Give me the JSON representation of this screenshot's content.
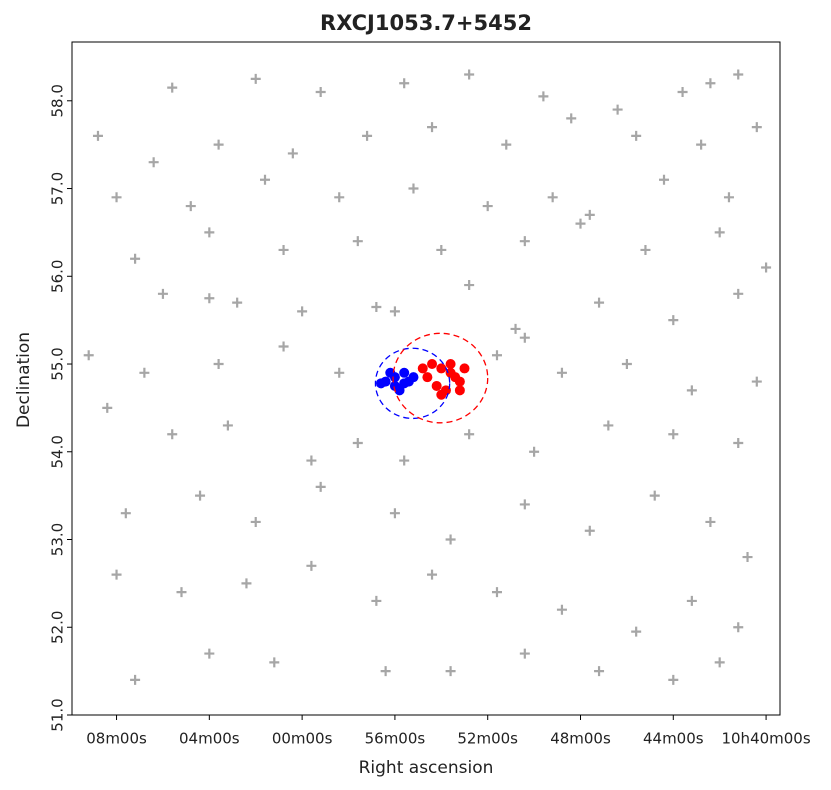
{
  "chart_data": {
    "type": "scatter",
    "title": "RXCJ1053.7+5452",
    "x_label": "Right ascension",
    "y_label": "Declination",
    "xlim": [
      167.48,
      159.85
    ],
    "ylim": [
      51.0,
      58.67
    ],
    "xticks": [
      {
        "value": 167,
        "label": "08m00s"
      },
      {
        "value": 166,
        "label": "04m00s"
      },
      {
        "value": 165,
        "label": "00m00s"
      },
      {
        "value": 164,
        "label": "56m00s"
      },
      {
        "value": 163,
        "label": "52m00s"
      },
      {
        "value": 162,
        "label": "48m00s"
      },
      {
        "value": 161,
        "label": "44m00s"
      },
      {
        "value": 160,
        "label": "10h40m00s"
      }
    ],
    "yticks": [
      {
        "value": 51,
        "label": "51.0"
      },
      {
        "value": 52,
        "label": "52.0"
      },
      {
        "value": 53,
        "label": "53.0"
      },
      {
        "value": 54,
        "label": "54.0"
      },
      {
        "value": 55,
        "label": "55.0"
      },
      {
        "value": 56,
        "label": "56.0"
      },
      {
        "value": 57,
        "label": "57.0"
      },
      {
        "value": 58,
        "label": "58.0"
      }
    ],
    "series": [
      {
        "color": "#777777",
        "marker": "plus",
        "x": [
          166.4,
          165.5,
          164.8,
          163.9,
          163.2,
          162.4,
          161.6,
          160.9,
          160.3,
          160.6,
          167.2,
          166.6,
          165.9,
          165.1,
          164.3,
          163.6,
          162.8,
          162.1,
          161.4,
          160.7,
          160.1,
          167.0,
          166.2,
          165.4,
          164.6,
          163.8,
          163.0,
          162.3,
          161.9,
          161.1,
          160.4,
          166.8,
          166.0,
          165.2,
          164.4,
          163.5,
          162.6,
          162.0,
          161.3,
          160.5,
          160.0,
          166.5,
          166.0,
          165.7,
          165.0,
          164.2,
          164.0,
          163.2,
          162.7,
          162.6,
          161.8,
          161.0,
          160.3,
          167.3,
          166.7,
          165.9,
          165.2,
          164.6,
          162.9,
          162.2,
          161.5,
          160.8,
          160.1,
          167.1,
          166.4,
          165.8,
          164.9,
          164.4,
          163.9,
          163.2,
          162.5,
          161.7,
          161.0,
          160.3,
          166.9,
          166.1,
          165.5,
          164.8,
          164.0,
          163.4,
          162.6,
          161.9,
          161.2,
          160.6,
          160.2,
          167.0,
          166.3,
          165.6,
          164.9,
          164.2,
          163.6,
          162.9,
          162.2,
          161.4,
          160.8,
          160.3,
          166.8,
          166.0,
          165.3,
          164.1,
          163.4,
          162.6,
          161.8,
          161.0,
          160.5
        ],
        "values": [
          58.15,
          58.25,
          58.1,
          58.2,
          58.3,
          58.05,
          57.9,
          58.1,
          58.3,
          58.2,
          57.6,
          57.3,
          57.5,
          57.4,
          57.6,
          57.7,
          57.5,
          57.8,
          57.6,
          57.5,
          57.7,
          56.9,
          56.8,
          57.1,
          56.9,
          57.0,
          56.8,
          56.9,
          56.7,
          57.1,
          56.9,
          56.2,
          56.5,
          56.3,
          56.4,
          56.3,
          56.4,
          56.6,
          56.3,
          56.5,
          56.1,
          55.8,
          55.75,
          55.7,
          55.6,
          55.65,
          55.6,
          55.9,
          55.4,
          55.3,
          55.7,
          55.5,
          55.8,
          55.1,
          54.9,
          55.0,
          55.2,
          54.9,
          55.1,
          54.9,
          55.0,
          54.7,
          54.8,
          54.5,
          54.2,
          54.3,
          53.9,
          54.1,
          53.9,
          54.2,
          54.0,
          54.3,
          54.2,
          54.1,
          53.3,
          53.5,
          53.2,
          53.6,
          53.3,
          53.0,
          53.4,
          53.1,
          53.5,
          53.2,
          52.8,
          52.6,
          52.4,
          52.5,
          52.7,
          52.3,
          52.6,
          52.4,
          52.2,
          51.95,
          52.3,
          52.0,
          51.4,
          51.7,
          51.6,
          51.5,
          51.5,
          51.7,
          51.5,
          51.4,
          51.6
        ]
      },
      {
        "color": "#ff0000",
        "marker": "dot",
        "x": [
          163.6,
          163.5,
          163.4,
          163.3,
          163.55,
          163.45,
          163.35,
          163.65,
          163.25,
          163.5,
          163.4,
          163.7,
          163.3
        ],
        "values": [
          55.0,
          54.95,
          54.9,
          54.8,
          54.75,
          54.7,
          54.85,
          54.85,
          54.95,
          54.65,
          55.0,
          54.95,
          54.7
        ]
      },
      {
        "color": "#0000ff",
        "marker": "dot",
        "x": [
          164.1,
          164.0,
          163.9,
          164.0,
          163.85,
          163.95,
          164.15,
          163.8,
          163.9,
          164.05
        ],
        "values": [
          54.8,
          54.85,
          54.9,
          54.75,
          54.8,
          54.7,
          54.78,
          54.85,
          54.78,
          54.9
        ]
      }
    ],
    "circles": [
      {
        "x": 163.81,
        "y": 54.78,
        "radius": 0.4,
        "color": "#0000ff"
      },
      {
        "x": 163.51,
        "y": 54.84,
        "radius": 0.51,
        "color": "#ff0000"
      }
    ]
  }
}
